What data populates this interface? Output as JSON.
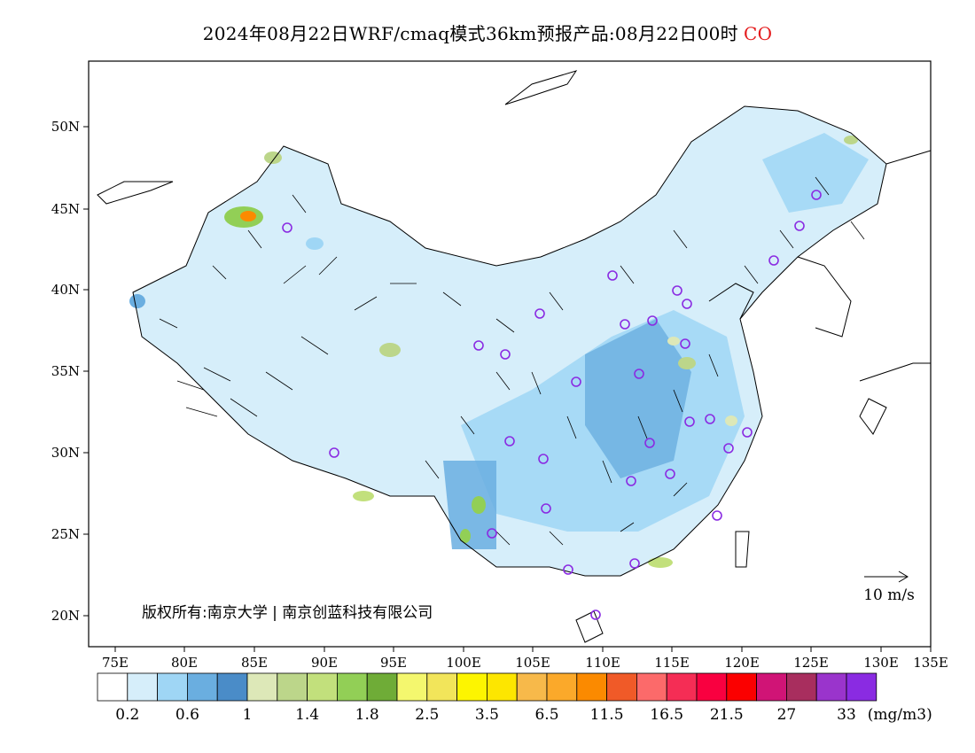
{
  "title": {
    "main": "2024年08月22日WRF/cmaq模式36km预报产品:08月22日00时",
    "species": "CO"
  },
  "map": {
    "lon_ticks": [
      "75E",
      "80E",
      "85E",
      "90E",
      "95E",
      "100E",
      "105E",
      "110E",
      "115E",
      "120E",
      "125E",
      "130E",
      "135E"
    ],
    "lat_ticks": [
      "50N",
      "45N",
      "40N",
      "35N",
      "30N",
      "25N",
      "20N"
    ],
    "reference_vector_label": "10 m/s",
    "copyright": "版权所有:南京大学 | 南京创蓝科技有限公司",
    "marker_color": "#8a2be2"
  },
  "legend": {
    "colors": [
      "#ffffff",
      "#d6eefa",
      "#9fd6f5",
      "#6aaee0",
      "#4a8cc8",
      "#dde8b8",
      "#bcd68a",
      "#c2e07c",
      "#92cf56",
      "#6fac37",
      "#f4f76e",
      "#f2e55a",
      "#fdf500",
      "#fde600",
      "#f7b94a",
      "#fba92a",
      "#fb8a00",
      "#f05a28",
      "#fc6a6a",
      "#f52d55",
      "#f90040",
      "#fb0000",
      "#d01476",
      "#a82e5e",
      "#9a34cc",
      "#8a2be2"
    ],
    "labels": [
      "0.2",
      "0.6",
      "1",
      "1.4",
      "1.8",
      "2.5",
      "3.5",
      "6.5",
      "11.5",
      "16.5",
      "21.5",
      "27",
      "33"
    ],
    "unit": "(mg/m3)"
  }
}
